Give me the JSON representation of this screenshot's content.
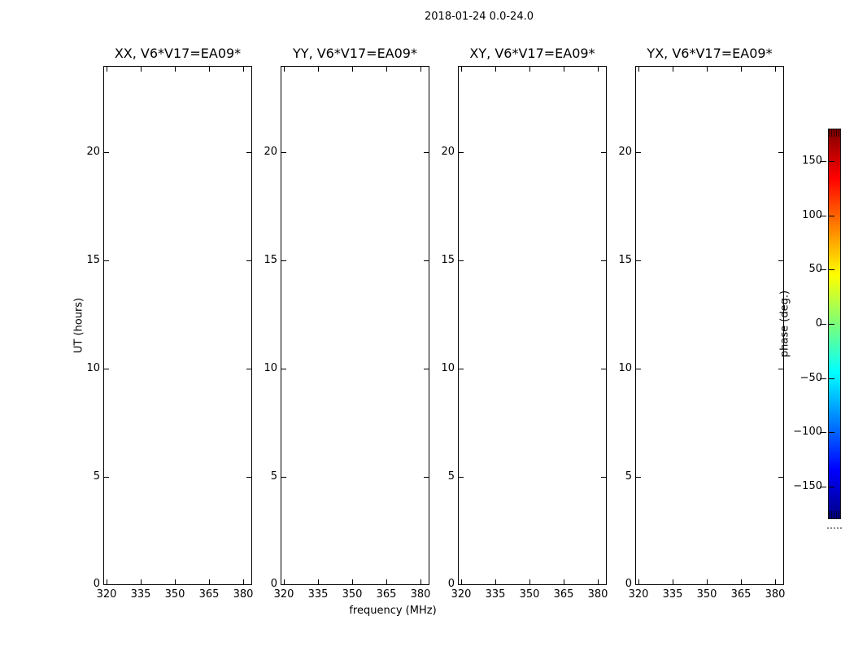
{
  "figure": {
    "title": "2018-01-24 0.0-24.0",
    "background_color": "#ffffff",
    "text_color": "#000000"
  },
  "subplots": [
    {
      "title": "XX, V6*V17=EA09*"
    },
    {
      "title": "YY, V6*V17=EA09*"
    },
    {
      "title": "XY, V6*V17=EA09*"
    },
    {
      "title": "YX, V6*V17=EA09*"
    }
  ],
  "axes": {
    "x_label": "frequency (MHz)",
    "y_label": "UT (hours)",
    "x_tick_labels": [
      "320",
      "335",
      "350",
      "365",
      "380"
    ],
    "y_tick_labels": [
      "20",
      "15",
      "10",
      "5",
      "0"
    ]
  },
  "colorbar": {
    "label": "phase (deg.)",
    "tick_labels": [
      "150",
      "100",
      "50",
      "0",
      "−50",
      "−100",
      "−150"
    ],
    "colormap": "jet",
    "top_color": "#800000",
    "bottom_color": "#000085"
  },
  "chart_data": {
    "type": "heatmap",
    "title": "2018-01-24 0.0-24.0",
    "panels": [
      {
        "title": "XX, V6*V17=EA09*",
        "values": []
      },
      {
        "title": "YY, V6*V17=EA09*",
        "values": []
      },
      {
        "title": "XY, V6*V17=EA09*",
        "values": []
      },
      {
        "title": "YX, V6*V17=EA09*",
        "values": []
      }
    ],
    "xlabel": "frequency (MHz)",
    "ylabel": "UT (hours)",
    "x_ticks": [
      320,
      335,
      350,
      365,
      380
    ],
    "y_ticks": [
      0,
      5,
      10,
      15,
      20
    ],
    "xlim": [
      318.5,
      384.5
    ],
    "ylim": [
      0.0,
      24.0
    ],
    "grid": false,
    "colorbar": {
      "label": "phase (deg.)",
      "min": -180,
      "max": 180,
      "ticks": [
        -150,
        -100,
        -50,
        0,
        50,
        100,
        150
      ],
      "colormap": "jet"
    }
  }
}
